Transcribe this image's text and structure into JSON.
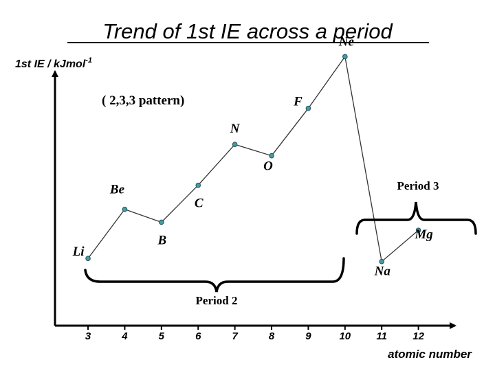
{
  "chart_data": {
    "type": "line",
    "title": "Trend of 1st IE across a period",
    "ylabel": "1st IE / kJmol",
    "ylabel_superscript": "-1",
    "xlabel": "atomic number",
    "x_ticks": [
      "3",
      "4",
      "5",
      "6",
      "7",
      "8",
      "9",
      "10",
      "11",
      "12"
    ],
    "xlim": [
      2.1,
      13.0
    ],
    "ylim": [
      0,
      2200
    ],
    "series": [
      {
        "points": [
          {
            "x": 3,
            "y": 520,
            "label": "Li"
          },
          {
            "x": 4,
            "y": 900,
            "label": "Be"
          },
          {
            "x": 5,
            "y": 800,
            "label": "B"
          },
          {
            "x": 6,
            "y": 1086,
            "label": "C"
          },
          {
            "x": 7,
            "y": 1402,
            "label": "N"
          },
          {
            "x": 8,
            "y": 1314,
            "label": "O"
          },
          {
            "x": 9,
            "y": 1681,
            "label": "F"
          },
          {
            "x": 10,
            "y": 2081,
            "label": "Ne"
          },
          {
            "x": 11,
            "y": 496,
            "label": "Na"
          },
          {
            "x": 12,
            "y": 738,
            "label": "Mg"
          }
        ]
      }
    ],
    "annotations": {
      "pattern": "( 2,3,3 pattern)",
      "period2": "Period 2",
      "period3": "Period 3"
    },
    "colors": {
      "line": "#333333",
      "marker_fill": "#4a9a9e",
      "marker_stroke": "#1f5560",
      "axis": "#000000"
    }
  }
}
